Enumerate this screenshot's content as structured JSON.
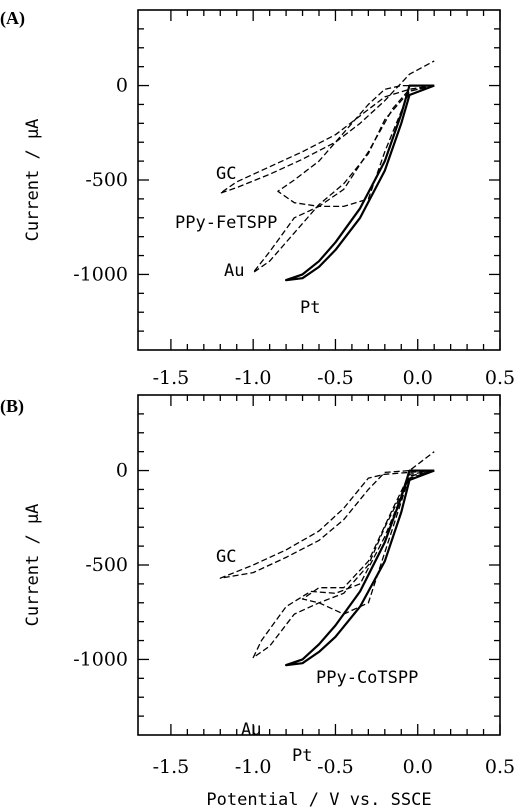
{
  "chart_data": [
    {
      "panel": "(A)",
      "type": "line",
      "ylabel": "Current / μA",
      "xlabel": "",
      "xlim": [
        -1.7,
        0.5
      ],
      "ylim": [
        -1400,
        400
      ],
      "xticks": [
        "-1.5",
        "-1.0",
        "-0.5",
        "0.0",
        "0.5"
      ],
      "yticks": [
        "0",
        "-500",
        "-1000"
      ],
      "annotations": [
        "GC",
        "PPy-FeTSPP",
        "Au",
        "Pt"
      ],
      "series": [
        {
          "name": "GC",
          "style": "dashed",
          "x": [
            0.1,
            -0.05,
            -0.2,
            -0.35,
            -0.5,
            -0.7,
            -0.9,
            -1.1,
            -1.2,
            -1.1,
            -0.9,
            -0.7,
            -0.5,
            -0.35,
            -0.2,
            -0.05,
            0.1
          ],
          "y": [
            0,
            -20,
            -60,
            -160,
            -260,
            -350,
            -430,
            -510,
            -570,
            -540,
            -470,
            -390,
            -300,
            -200,
            -80,
            60,
            130
          ]
        },
        {
          "name": "PPy-FeTSPP",
          "style": "dashed",
          "x": [
            0.1,
            -0.05,
            -0.15,
            -0.3,
            -0.45,
            -0.6,
            -0.75,
            -0.85,
            -0.75,
            -0.6,
            -0.45,
            -0.3,
            -0.2,
            -0.1,
            0.1
          ],
          "y": [
            0,
            -20,
            -120,
            -350,
            -550,
            -640,
            -620,
            -560,
            -500,
            -400,
            -250,
            -100,
            -20,
            0,
            0
          ]
        },
        {
          "name": "Au",
          "style": "dashed",
          "x": [
            0.1,
            -0.05,
            -0.2,
            -0.3,
            -0.45,
            -0.6,
            -0.75,
            -0.9,
            -1.0,
            -0.9,
            -0.75,
            -0.6,
            -0.45,
            -0.3,
            -0.2,
            -0.05,
            0.1
          ],
          "y": [
            0,
            -30,
            -350,
            -600,
            -640,
            -640,
            -700,
            -880,
            -990,
            -930,
            -780,
            -630,
            -520,
            -360,
            -180,
            -30,
            0
          ]
        },
        {
          "name": "Pt",
          "style": "solid",
          "x": [
            0.1,
            -0.05,
            -0.1,
            -0.2,
            -0.35,
            -0.5,
            -0.6,
            -0.7,
            -0.8,
            -0.7,
            -0.6,
            -0.5,
            -0.35,
            -0.2,
            -0.1,
            -0.05,
            0.1
          ],
          "y": [
            0,
            -50,
            -200,
            -450,
            -700,
            -870,
            -960,
            -1020,
            -1030,
            -1000,
            -930,
            -830,
            -650,
            -400,
            -150,
            0,
            0
          ]
        }
      ]
    },
    {
      "panel": "(B)",
      "type": "line",
      "ylabel": "Current / μA",
      "xlabel": "Potential / V vs. SSCE",
      "xlim": [
        -1.7,
        0.5
      ],
      "ylim": [
        -1400,
        400
      ],
      "xticks": [
        "-1.5",
        "-1.0",
        "-0.5",
        "0.0",
        "0.5"
      ],
      "yticks": [
        "0",
        "-500",
        "-1000"
      ],
      "annotations": [
        "GC",
        "PPy-CoTSPP",
        "Au",
        "Pt"
      ],
      "series": [
        {
          "name": "GC",
          "style": "dashed",
          "x": [
            0.1,
            -0.05,
            -0.2,
            -0.3,
            -0.45,
            -0.6,
            -0.8,
            -1.0,
            -1.2,
            -1.0,
            -0.8,
            -0.6,
            -0.45,
            -0.3,
            -0.2,
            -0.05,
            0.1
          ],
          "y": [
            0,
            -10,
            -20,
            -40,
            -200,
            -320,
            -420,
            -500,
            -570,
            -540,
            -460,
            -370,
            -260,
            -100,
            -10,
            0,
            100
          ]
        },
        {
          "name": "PPy-CoTSPP",
          "style": "dashed",
          "x": [
            0.1,
            -0.05,
            -0.15,
            -0.3,
            -0.45,
            -0.6,
            -0.7,
            -0.6,
            -0.45,
            -0.3,
            -0.15,
            -0.05,
            0.1
          ],
          "y": [
            0,
            -30,
            -300,
            -700,
            -760,
            -700,
            -680,
            -620,
            -620,
            -480,
            -200,
            -20,
            0
          ]
        },
        {
          "name": "Au",
          "style": "dashed",
          "x": [
            0.1,
            -0.05,
            -0.2,
            -0.35,
            -0.5,
            -0.65,
            -0.8,
            -0.95,
            -1.0,
            -0.9,
            -0.75,
            -0.6,
            -0.45,
            -0.3,
            -0.2,
            -0.05,
            0.1
          ],
          "y": [
            0,
            -30,
            -350,
            -600,
            -650,
            -640,
            -720,
            -900,
            -990,
            -930,
            -760,
            -700,
            -650,
            -500,
            -300,
            -40,
            0
          ]
        },
        {
          "name": "Pt",
          "style": "solid",
          "x": [
            0.1,
            -0.05,
            -0.1,
            -0.2,
            -0.35,
            -0.5,
            -0.6,
            -0.7,
            -0.8,
            -0.7,
            -0.6,
            -0.5,
            -0.35,
            -0.2,
            -0.1,
            -0.05,
            0.1
          ],
          "y": [
            0,
            -50,
            -220,
            -480,
            -720,
            -880,
            -960,
            -1020,
            -1030,
            -1000,
            -920,
            -820,
            -640,
            -380,
            -140,
            0,
            0
          ]
        }
      ]
    }
  ]
}
